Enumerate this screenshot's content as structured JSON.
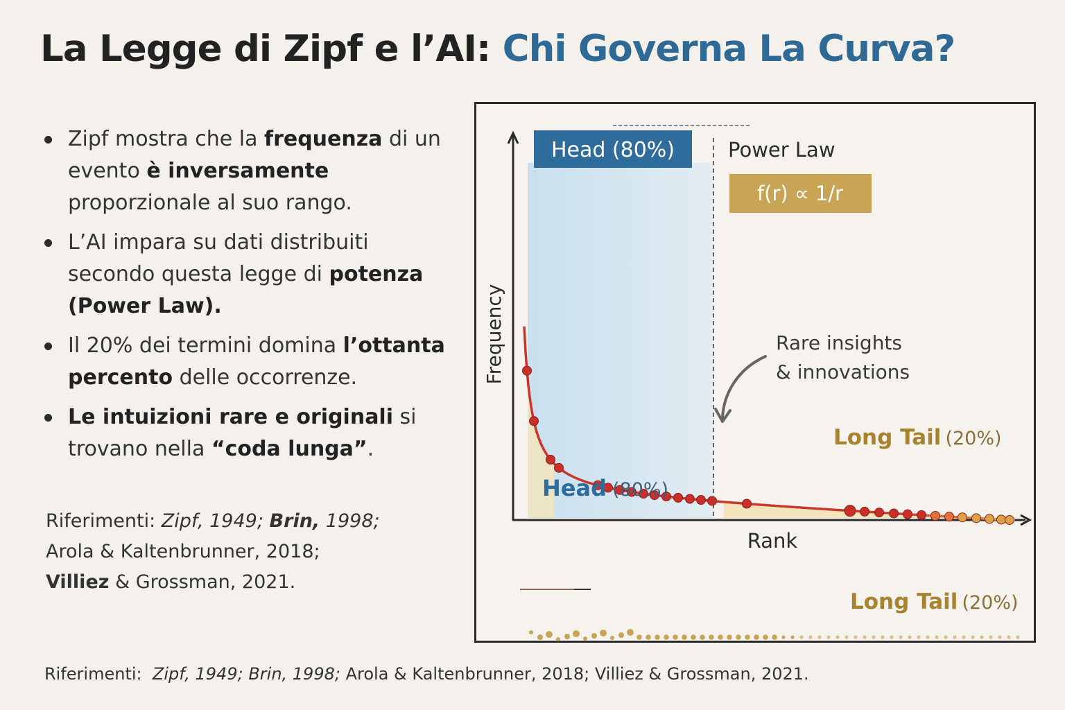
{
  "title": {
    "part1": "La Legge di Zipf e l’AI:",
    "part2": "Chi Governa La Curva?",
    "accent_color": "#2f6a96"
  },
  "bullets": [
    {
      "segments": [
        {
          "text": "Zipf mostra che la ",
          "bold": false
        },
        {
          "text": "frequenza",
          "bold": true
        },
        {
          "text": " di un evento ",
          "bold": false
        },
        {
          "text": "è inversamente",
          "bold": true
        },
        {
          "text": " proporzionale al suo rango.",
          "bold": false
        }
      ]
    },
    {
      "segments": [
        {
          "text": "L’AI impara su dati distribuiti secondo questa legge di ",
          "bold": false
        },
        {
          "text": "potenza",
          "bold": true
        },
        {
          "text": " ",
          "bold": false
        },
        {
          "text": "(Power Law).",
          "bold": true
        }
      ]
    },
    {
      "segments": [
        {
          "text": "Il 20% dei termini domina ",
          "bold": false
        },
        {
          "text": "l’ottanta percento",
          "bold": true
        },
        {
          "text": " delle occorrenze.",
          "bold": false
        }
      ]
    },
    {
      "segments": [
        {
          "text": "Le intuizioni rare e originali",
          "bold": true
        },
        {
          "text": " si trovano nella ",
          "bold": false
        },
        {
          "text": "“coda lunga”",
          "bold": true
        },
        {
          "text": ".",
          "bold": false
        }
      ]
    }
  ],
  "references_left": {
    "label": "Riferimenti:",
    "line1_a": "Zipf, 1949;",
    "line1_b": "Brin,",
    "line1_c": "1998;",
    "line2": "Arola & Kaltenbrunner, 2018;",
    "line3_a": "Villiez",
    "line3_b": "& Grossman, 2021."
  },
  "references_bottom": {
    "label": "Riferimenti:",
    "italic": "Zipf, 1949; Brin, 1998;",
    "rest": "Arola & Kaltenbrunner, 2018; Villiez & Grossman, 2021."
  },
  "chart_data": {
    "type": "line",
    "xlabel": "Rank",
    "ylabel": "Frequency",
    "head_box_label": "Head (80%)",
    "head_area_label": {
      "main": "Head",
      "pct": "(80%)"
    },
    "power_law_label": "Power Law",
    "formula": "f(r) ∝ 1/r",
    "annotation": {
      "line1": "Rare insights",
      "line2": "& innovations"
    },
    "long_tail_label": {
      "main": "Long Tail",
      "pct": "(20%)"
    },
    "long_tail_label_bottom": {
      "main": "Long Tail",
      "pct": "(20%)"
    },
    "head_share_pct": 80,
    "tail_share_pct": 20,
    "curve": "power law, f ∝ 1/r",
    "colors": {
      "curve": "#c93a2e",
      "head_fill": "#cfe3f0",
      "tail_fill": "#f3e3b8",
      "head_box": "#2e6c9b",
      "formula_box": "#c9a455",
      "tail_text": "#a7822f"
    }
  }
}
